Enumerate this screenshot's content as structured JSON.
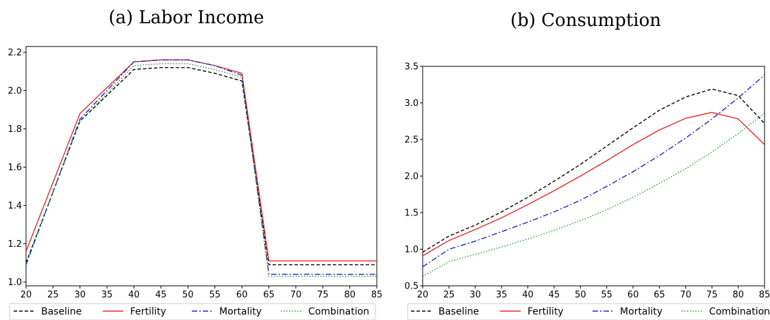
{
  "chart_data": [
    {
      "type": "line",
      "title": "(a) Labor Income",
      "x": [
        20,
        30,
        40,
        45,
        50,
        55,
        60,
        65,
        70,
        75,
        80,
        85
      ],
      "xticks": [
        20,
        25,
        30,
        35,
        40,
        45,
        50,
        55,
        60,
        65,
        70,
        75,
        80,
        85
      ],
      "yticks": [
        1.0,
        1.2,
        1.4,
        1.6,
        1.8,
        2.0,
        2.2
      ],
      "xlim": [
        20,
        85
      ],
      "ylim": [
        0.98,
        2.23
      ],
      "grid": false,
      "legend": "bottom",
      "series": [
        {
          "name": "Baseline",
          "color": "#000000",
          "dash": "5,3",
          "values": [
            1.1,
            1.84,
            2.11,
            2.12,
            2.12,
            2.09,
            2.05,
            1.09,
            1.09,
            1.09,
            1.09,
            1.09
          ]
        },
        {
          "name": "Fertility",
          "color": "#e8262b",
          "dash": "",
          "values": [
            1.16,
            1.88,
            2.15,
            2.16,
            2.16,
            2.13,
            2.09,
            1.11,
            1.11,
            1.11,
            1.11,
            1.11
          ]
        },
        {
          "name": "Mortality",
          "color": "#2020d0",
          "dash": "8,3,2,3",
          "values": [
            1.09,
            1.85,
            2.15,
            2.16,
            2.16,
            2.13,
            2.08,
            1.04,
            1.04,
            1.04,
            1.04,
            1.04
          ]
        },
        {
          "name": "Combination",
          "color": "#1a9a1a",
          "dash": "1.5,2.5",
          "values": [
            1.1,
            1.84,
            2.13,
            2.14,
            2.14,
            2.11,
            2.07,
            1.03,
            1.03,
            1.03,
            1.03,
            1.03
          ]
        }
      ]
    },
    {
      "type": "line",
      "title": "(b) Consumption",
      "x": [
        20,
        25,
        30,
        35,
        40,
        45,
        50,
        55,
        60,
        65,
        70,
        75,
        80,
        85
      ],
      "xticks": [
        20,
        25,
        30,
        35,
        40,
        45,
        50,
        55,
        60,
        65,
        70,
        75,
        80,
        85
      ],
      "yticks": [
        0.5,
        1.0,
        1.5,
        2.0,
        2.5,
        3.0,
        3.5
      ],
      "xlim": [
        20,
        85
      ],
      "ylim": [
        0.5,
        3.5
      ],
      "grid": false,
      "legend": "bottom",
      "series": [
        {
          "name": "Baseline",
          "color": "#000000",
          "dash": "5,3",
          "values": [
            0.96,
            1.18,
            1.33,
            1.51,
            1.71,
            1.93,
            2.16,
            2.41,
            2.66,
            2.9,
            3.08,
            3.19,
            3.1,
            2.72
          ]
        },
        {
          "name": "Fertility",
          "color": "#e8262b",
          "dash": "",
          "values": [
            0.91,
            1.12,
            1.27,
            1.43,
            1.61,
            1.8,
            2.0,
            2.21,
            2.43,
            2.63,
            2.79,
            2.87,
            2.78,
            2.43
          ]
        },
        {
          "name": "Mortality",
          "color": "#2020d0",
          "dash": "8,3,2,3",
          "values": [
            0.76,
            1.0,
            1.11,
            1.24,
            1.37,
            1.51,
            1.67,
            1.86,
            2.06,
            2.28,
            2.52,
            2.78,
            3.07,
            3.38
          ]
        },
        {
          "name": "Combination",
          "color": "#1a9a1a",
          "dash": "1.5,2.5",
          "values": [
            0.63,
            0.83,
            0.93,
            1.03,
            1.14,
            1.26,
            1.39,
            1.54,
            1.71,
            1.9,
            2.1,
            2.33,
            2.58,
            2.86
          ]
        }
      ]
    }
  ]
}
